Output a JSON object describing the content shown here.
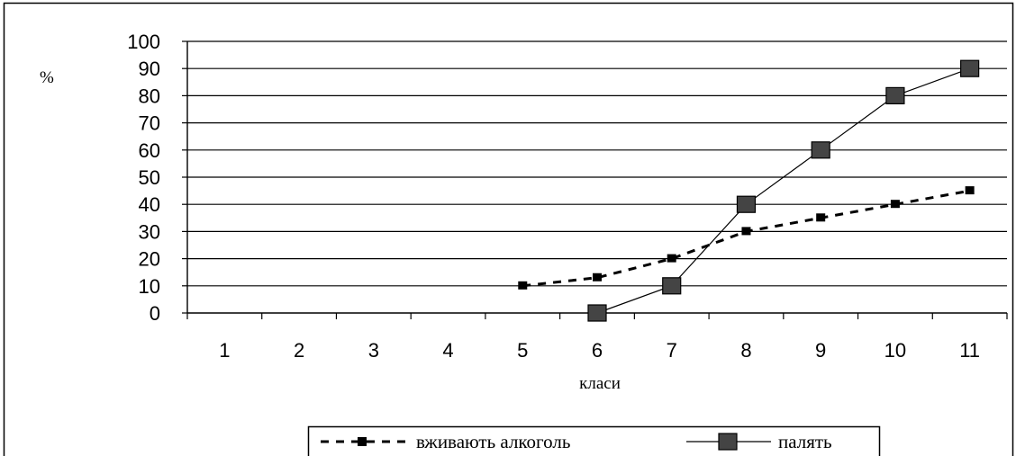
{
  "chart_data": {
    "type": "line",
    "title": "",
    "xlabel": "класи",
    "ylabel": "%",
    "categories": [
      "1",
      "2",
      "3",
      "4",
      "5",
      "6",
      "7",
      "8",
      "9",
      "10",
      "11"
    ],
    "ylim": [
      0,
      100
    ],
    "yticks": [
      0,
      10,
      20,
      30,
      40,
      50,
      60,
      70,
      80,
      90,
      100
    ],
    "grid": true,
    "legend_position": "bottom",
    "series": [
      {
        "name": "вживають алкоголь",
        "style": "dashed",
        "marker": "small-square",
        "color": "#000000",
        "values": [
          null,
          null,
          null,
          null,
          10,
          13,
          20,
          30,
          35,
          40,
          45
        ]
      },
      {
        "name": "палять",
        "style": "solid",
        "marker": "large-square",
        "color": "#000000",
        "marker_fill": "#444444",
        "values": [
          null,
          null,
          null,
          null,
          null,
          0,
          10,
          40,
          60,
          80,
          90
        ]
      }
    ]
  }
}
